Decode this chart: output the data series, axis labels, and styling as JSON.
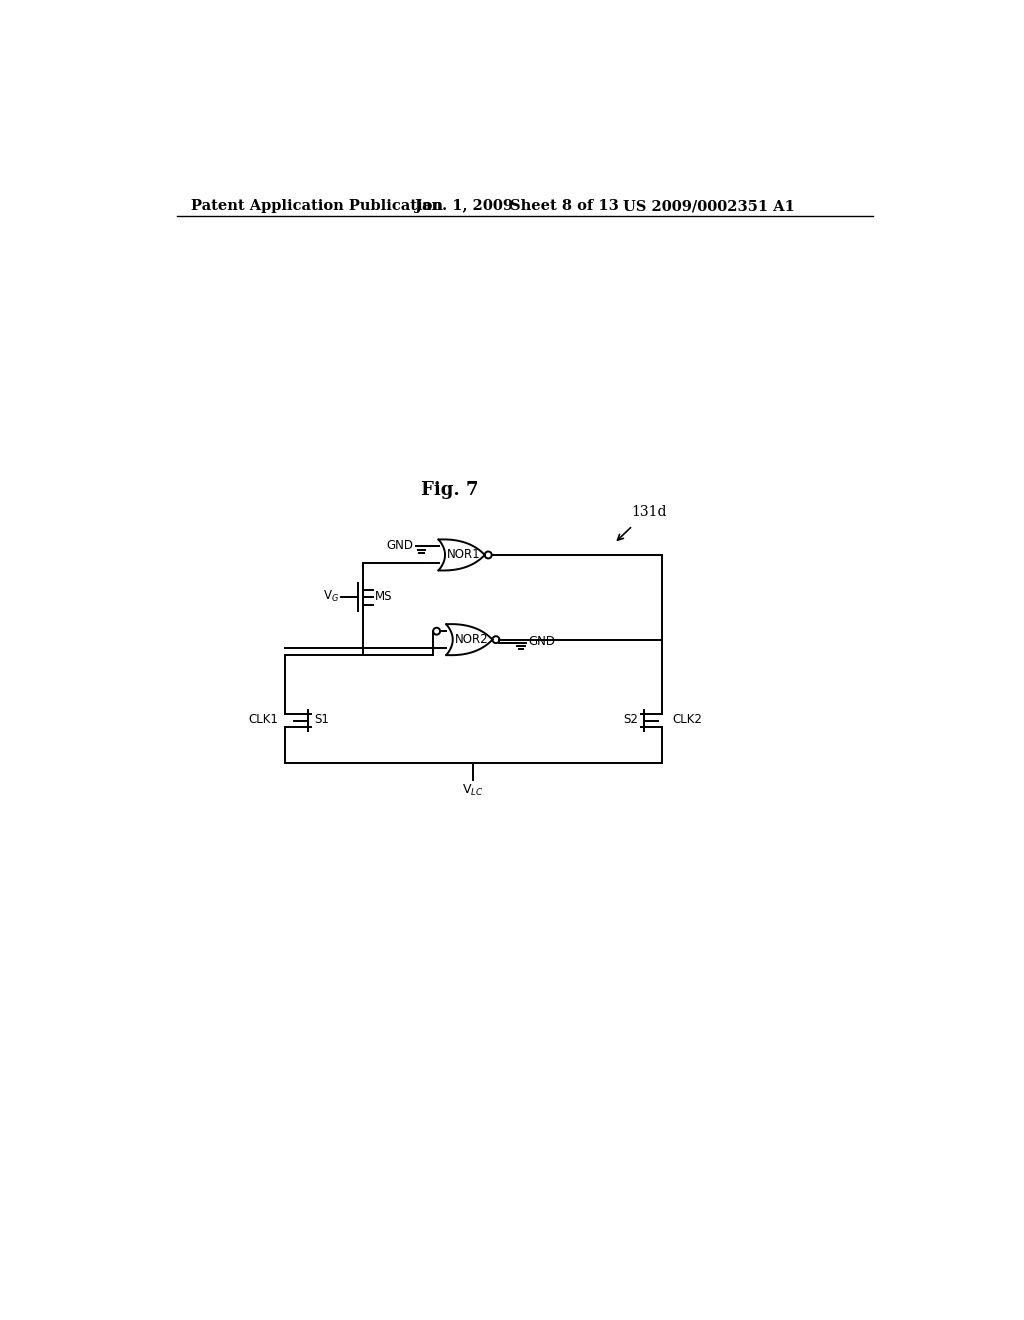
{
  "title_line1": "Patent Application Publication",
  "title_date": "Jan. 1, 2009   Sheet 8 of 13",
  "title_patent": "US 2009/0002351 A1",
  "fig_label": "Fig. 7",
  "ref_label": "131d",
  "background": "#ffffff",
  "line_color": "#000000",
  "lw": 1.4
}
